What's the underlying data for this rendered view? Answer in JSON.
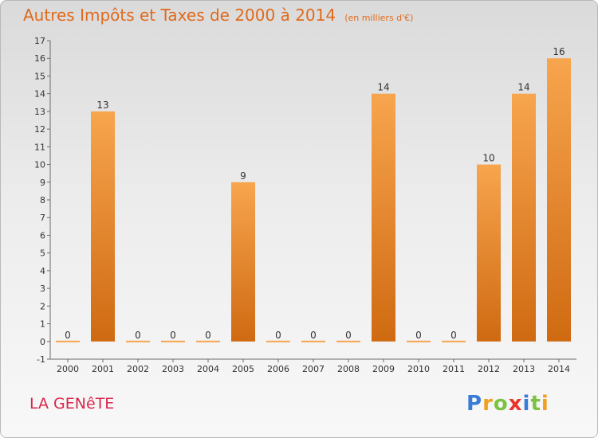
{
  "title": "Autres Impôts et Taxes de 2000 à 2014",
  "unit_note": "(en milliers d'€)",
  "place_name": "LA GENêTE",
  "logo": {
    "text": "Proxiti",
    "letter_colors": [
      "#3a7bd5",
      "#f0a020",
      "#7cc242",
      "#e8342c",
      "#3a7bd5",
      "#7cc242",
      "#f0a020"
    ]
  },
  "colors": {
    "bar_top": "#f7a54e",
    "bar_bottom": "#cf6a12",
    "title": "#e06a1c",
    "place": "#d9264b"
  },
  "chart_data": {
    "type": "bar",
    "categories": [
      "2000",
      "2001",
      "2002",
      "2003",
      "2004",
      "2005",
      "2006",
      "2007",
      "2008",
      "2009",
      "2010",
      "2011",
      "2012",
      "2013",
      "2014"
    ],
    "values": [
      0,
      13,
      0,
      0,
      0,
      9,
      0,
      0,
      0,
      14,
      0,
      0,
      10,
      14,
      16
    ],
    "data_labels": [
      "0",
      "13",
      "0",
      "0",
      "0",
      "9",
      "0",
      "0",
      "0",
      "14",
      "0",
      "0",
      "10",
      "14",
      "16"
    ],
    "ylim": [
      -1,
      17
    ],
    "yticks": [
      -1,
      0,
      1,
      2,
      3,
      4,
      5,
      6,
      7,
      8,
      9,
      10,
      11,
      12,
      13,
      14,
      15,
      16,
      17
    ],
    "grid": false
  }
}
